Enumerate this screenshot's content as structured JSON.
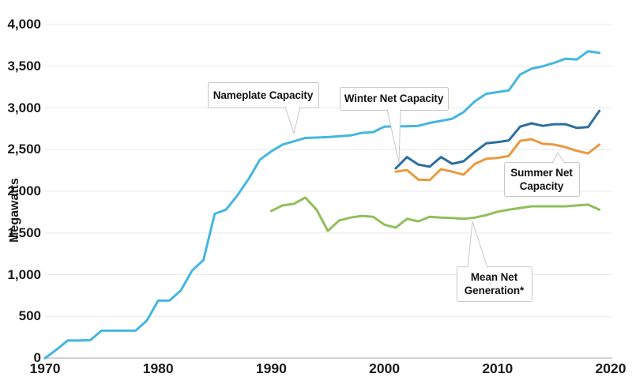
{
  "chart_data": {
    "type": "line",
    "title": "",
    "ylabel": "Megawatts",
    "grid": true,
    "x_axis": {
      "range": [
        1970,
        2020
      ],
      "ticks": [
        {
          "v": 1970,
          "label": "1970"
        },
        {
          "v": 1980,
          "label": "1980"
        },
        {
          "v": 1990,
          "label": "1990"
        },
        {
          "v": 2000,
          "label": "2000"
        },
        {
          "v": 2010,
          "label": "2010"
        },
        {
          "v": 2020,
          "label": "2020"
        }
      ]
    },
    "y_axis": {
      "range": [
        0,
        4000
      ],
      "ticks": [
        {
          "v": 0,
          "label": "0"
        },
        {
          "v": 500,
          "label": "500"
        },
        {
          "v": 1000,
          "label": "1,000"
        },
        {
          "v": 1500,
          "label": "1,500"
        },
        {
          "v": 2000,
          "label": "2,000"
        },
        {
          "v": 2500,
          "label": "2,500"
        },
        {
          "v": 3000,
          "label": "3,000"
        },
        {
          "v": 3500,
          "label": "3,500"
        },
        {
          "v": 4000,
          "label": "4,000"
        }
      ]
    },
    "series": [
      {
        "name": "Nameplate Capacity",
        "slug": "nameplate-capacity",
        "color": "#45b6e0",
        "start_year": 1970,
        "values": [
          0,
          100,
          210,
          210,
          215,
          330,
          330,
          330,
          330,
          450,
          690,
          690,
          810,
          1050,
          1175,
          1730,
          1780,
          1950,
          2150,
          2380,
          2480,
          2560,
          2600,
          2640,
          2645,
          2650,
          2660,
          2670,
          2700,
          2710,
          2775,
          2780,
          2780,
          2785,
          2820,
          2845,
          2870,
          2950,
          3080,
          3170,
          3190,
          3210,
          3400,
          3470,
          3500,
          3540,
          3590,
          3580,
          3680,
          3660
        ]
      },
      {
        "name": "Mean Net Generation*",
        "slug": "mean-net-generation",
        "color": "#8fbf5b",
        "start_year": 1990,
        "values": [
          1765,
          1830,
          1850,
          1925,
          1780,
          1525,
          1650,
          1685,
          1705,
          1695,
          1600,
          1565,
          1670,
          1640,
          1695,
          1685,
          1680,
          1670,
          1685,
          1715,
          1755,
          1780,
          1800,
          1820,
          1820,
          1820,
          1820,
          1830,
          1840,
          1780
        ]
      },
      {
        "name": "Winter Net Capacity",
        "slug": "winter-net-capacity",
        "color": "#2c6f9e",
        "start_year": 2001,
        "values": [
          2275,
          2410,
          2320,
          2295,
          2410,
          2330,
          2360,
          2475,
          2575,
          2590,
          2610,
          2775,
          2815,
          2785,
          2805,
          2805,
          2760,
          2770,
          2965
        ]
      },
      {
        "name": "Summer Net Capacity",
        "slug": "summer-net-capacity",
        "color": "#e89a40",
        "start_year": 2001,
        "values": [
          2235,
          2255,
          2140,
          2135,
          2265,
          2235,
          2200,
          2330,
          2390,
          2400,
          2425,
          2605,
          2625,
          2570,
          2560,
          2530,
          2485,
          2455,
          2560
        ]
      }
    ],
    "annotations": {
      "nameplate": {
        "label": "Nameplate Capacity"
      },
      "winter": {
        "label": "Winter Net Capacity"
      },
      "summer": {
        "line1": "Summer Net",
        "line2": "Capacity"
      },
      "mean": {
        "line1": "Mean Net",
        "line2": "Generation*"
      }
    }
  },
  "colors": {
    "grid": "#e8e8e8",
    "axis": "#c4c4c4",
    "text": "#1b1b1b",
    "callout_border": "#c8c8c8",
    "background": "#ffffff"
  }
}
